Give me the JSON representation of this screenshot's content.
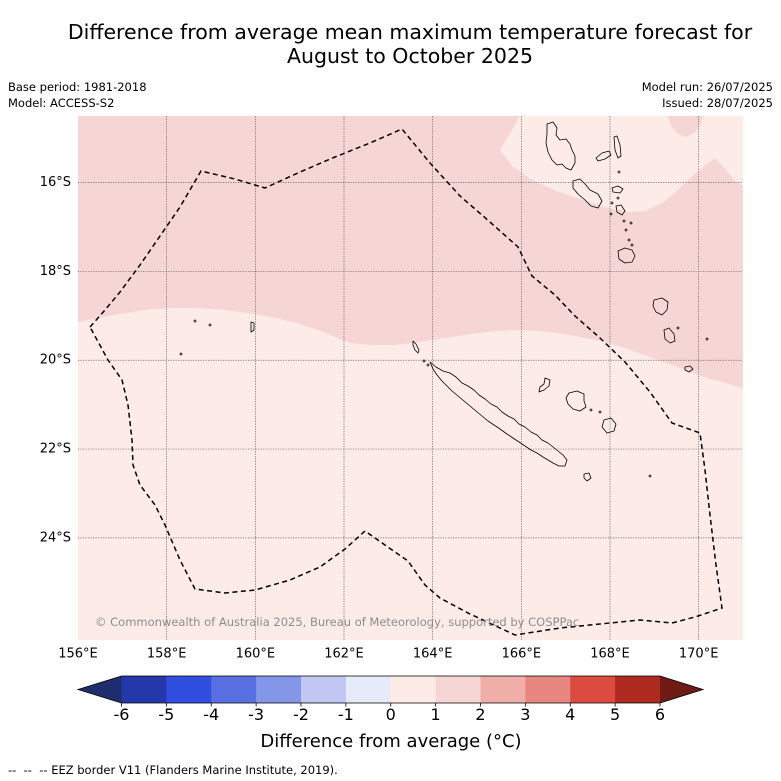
{
  "title": {
    "line1": "Difference from average mean maximum temperature forecast for",
    "line2": "August to October 2025"
  },
  "info_left": {
    "base_period": "Base period: 1981-2018",
    "model": "Model: ACCESS-S2"
  },
  "info_right": {
    "model_run": "Model run: 26/07/2025",
    "issued": "Issued: 28/07/2025"
  },
  "map": {
    "lon_range": [
      156,
      171
    ],
    "lat_range": [
      -26.3,
      -14.5
    ],
    "gridlines": true,
    "lon_ticks": [
      {
        "value": 156,
        "label": "156°E"
      },
      {
        "value": 158,
        "label": "158°E"
      },
      {
        "value": 160,
        "label": "160°E"
      },
      {
        "value": 162,
        "label": "162°E"
      },
      {
        "value": 164,
        "label": "164°E"
      },
      {
        "value": 166,
        "label": "166°E"
      },
      {
        "value": 168,
        "label": "168°E"
      },
      {
        "value": 170,
        "label": "170°E"
      }
    ],
    "lat_ticks": [
      {
        "value": -16,
        "label": "16°S"
      },
      {
        "value": -18,
        "label": "18°S"
      },
      {
        "value": -20,
        "label": "20°S"
      },
      {
        "value": -22,
        "label": "22°S"
      },
      {
        "value": -24,
        "label": "24°S"
      }
    ],
    "copyright": "© Commonwealth of Australia 2025, Bureau of Meteorology, supported by COSPPac",
    "colors": {
      "coastline": "#000000",
      "eez_border": "#000000",
      "gridline": "#5a5a5a"
    }
  },
  "colorbar": {
    "label": "Difference from average (°C)",
    "extend_arrows": "both",
    "under_color": "#1e2d6c",
    "over_color": "#6e1b16",
    "outline_color": "#000000",
    "bins": [
      {
        "from": -6,
        "to": -5,
        "color": "#2538ab"
      },
      {
        "from": -5,
        "to": -4,
        "color": "#304ee0"
      },
      {
        "from": -4,
        "to": -3,
        "color": "#5870e2"
      },
      {
        "from": -3,
        "to": -2,
        "color": "#8496e8"
      },
      {
        "from": -2,
        "to": -1,
        "color": "#c1c6f2"
      },
      {
        "from": -1,
        "to": 0,
        "color": "#e7eafb"
      },
      {
        "from": 0,
        "to": 1,
        "color": "#fdebe8"
      },
      {
        "from": 1,
        "to": 2,
        "color": "#f6d6d5"
      },
      {
        "from": 2,
        "to": 3,
        "color": "#f0aea8"
      },
      {
        "from": 3,
        "to": 4,
        "color": "#e7877f"
      },
      {
        "from": 4,
        "to": 5,
        "color": "#dc4b40"
      },
      {
        "from": 5,
        "to": 6,
        "color": "#ae2a20"
      }
    ],
    "ticks": [
      {
        "value": -6,
        "label": "-6"
      },
      {
        "value": -5,
        "label": "-5"
      },
      {
        "value": -4,
        "label": "-4"
      },
      {
        "value": -3,
        "label": "-3"
      },
      {
        "value": -2,
        "label": "-2"
      },
      {
        "value": -1,
        "label": "-1"
      },
      {
        "value": 0,
        "label": "0"
      },
      {
        "value": 1,
        "label": "1"
      },
      {
        "value": 2,
        "label": "2"
      },
      {
        "value": 3,
        "label": "3"
      },
      {
        "value": 4,
        "label": "4"
      },
      {
        "value": 5,
        "label": "5"
      },
      {
        "value": 6,
        "label": "6"
      }
    ]
  },
  "legend": {
    "eez_symbol": "--  --  --",
    "eez_text": "EEZ border V11 (Flanders Marine Institute, 2019)."
  }
}
